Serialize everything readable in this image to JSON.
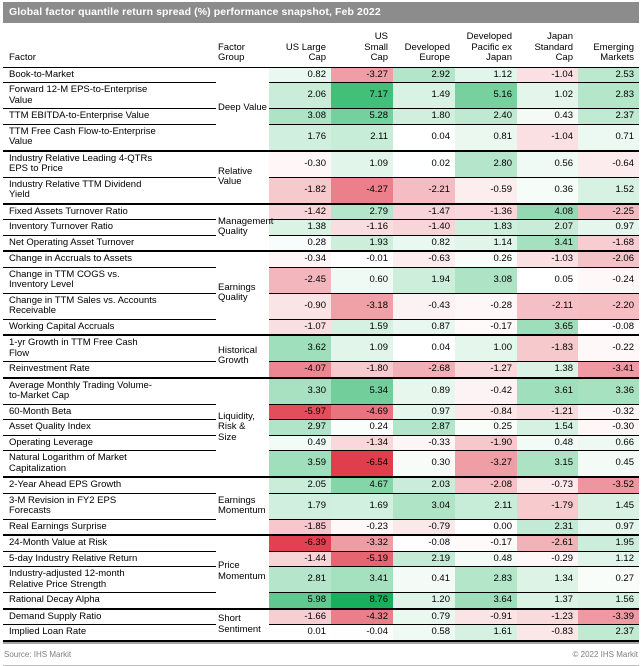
{
  "chart_data": {
    "type": "heatmap",
    "title": "Global factor quantile return spread (%) performance snapshot, Feb 2022",
    "row_header": "Factor",
    "group_header": "Factor Group",
    "columns": [
      "US Large\nCap",
      "US\nSmall\nCap",
      "Developed\nEurope",
      "Developed\nPacific ex\nJapan",
      "Japan\nStandard\nCap",
      "Emerging\nMarkets"
    ],
    "groups": [
      {
        "name": "Deep Value",
        "factors": [
          {
            "name": "Book-to-Market",
            "values": [
              0.82,
              -3.27,
              2.92,
              1.12,
              -1.04,
              2.53
            ]
          },
          {
            "name": "Forward 12-M EPS-to-Enterprise\nValue",
            "values": [
              2.06,
              7.17,
              1.49,
              5.16,
              1.02,
              2.83
            ]
          },
          {
            "name": "TTM EBITDA-to-Enterprise Value",
            "values": [
              3.08,
              5.28,
              1.8,
              2.4,
              0.43,
              2.37
            ]
          },
          {
            "name": "TTM Free Cash Flow-to-Enterprise\nValue",
            "values": [
              1.76,
              2.11,
              0.04,
              0.81,
              -1.04,
              0.71
            ]
          }
        ]
      },
      {
        "name": "Relative Value",
        "factors": [
          {
            "name": "Industry Relative Leading 4-QTRs\nEPS to Price",
            "values": [
              -0.3,
              1.09,
              0.02,
              2.8,
              0.56,
              -0.64
            ]
          },
          {
            "name": "Industry Relative TTM Dividend\nYield",
            "values": [
              -1.82,
              -4.27,
              -2.21,
              -0.59,
              0.36,
              1.52
            ]
          }
        ]
      },
      {
        "name": "Management\nQuality",
        "factors": [
          {
            "name": "Fixed Assets Turnover Ratio",
            "values": [
              -1.42,
              2.79,
              -1.47,
              -1.36,
              4.08,
              -2.25
            ]
          },
          {
            "name": "Inventory Turnover Ratio",
            "values": [
              1.38,
              -1.16,
              -1.4,
              1.83,
              2.07,
              0.97
            ]
          },
          {
            "name": "Net Operating Asset Turnover",
            "values": [
              0.28,
              1.93,
              0.82,
              1.14,
              3.41,
              -1.68
            ]
          }
        ]
      },
      {
        "name": "Earnings Quality",
        "factors": [
          {
            "name": "Change in Accruals to Assets",
            "values": [
              -0.34,
              -0.01,
              -0.63,
              0.26,
              -1.03,
              -2.06
            ]
          },
          {
            "name": "Change in TTM COGS vs.\nInventory Level",
            "values": [
              -2.45,
              0.6,
              1.94,
              3.08,
              0.05,
              -0.24
            ]
          },
          {
            "name": "Change in TTM Sales vs. Accounts\nReceivable",
            "values": [
              -0.9,
              -3.18,
              -0.43,
              -0.28,
              -2.11,
              -2.2
            ]
          },
          {
            "name": "Working Capital Accruals",
            "values": [
              -1.07,
              1.59,
              0.87,
              -0.17,
              3.65,
              -0.08
            ]
          }
        ]
      },
      {
        "name": "Historical Growth",
        "factors": [
          {
            "name": "1-yr Growth in TTM Free Cash\nFlow",
            "values": [
              3.62,
              1.09,
              0.04,
              1.0,
              -1.83,
              -0.22
            ]
          },
          {
            "name": "Reinvestment Rate",
            "values": [
              -4.07,
              -1.8,
              -2.68,
              -1.27,
              1.38,
              -3.41
            ]
          }
        ]
      },
      {
        "name": "Liquidity, Risk &\nSize",
        "factors": [
          {
            "name": "Average Monthly Trading Volume-\nto-Market Cap",
            "values": [
              3.3,
              5.34,
              0.89,
              -0.42,
              3.61,
              3.36
            ]
          },
          {
            "name": "60-Month Beta",
            "values": [
              -5.97,
              -4.69,
              0.97,
              -0.84,
              -1.21,
              -0.32
            ]
          },
          {
            "name": "Asset Quality Index",
            "values": [
              2.97,
              0.24,
              2.87,
              0.25,
              1.54,
              -0.3
            ]
          },
          {
            "name": "Operating Leverage",
            "values": [
              0.49,
              -1.34,
              -0.33,
              -1.9,
              0.48,
              0.66
            ]
          },
          {
            "name": "Natural Logarithm of Market\nCapitalization",
            "values": [
              3.59,
              -6.54,
              0.3,
              -3.27,
              3.15,
              0.45
            ]
          }
        ]
      },
      {
        "name": "Earnings\nMomentum",
        "factors": [
          {
            "name": "2-Year Ahead EPS Growth",
            "values": [
              2.05,
              4.67,
              2.03,
              -2.08,
              -0.73,
              -3.52
            ]
          },
          {
            "name": "3-M Revision in FY2 EPS\nForecasts",
            "values": [
              1.79,
              1.69,
              3.04,
              2.11,
              -1.79,
              1.45
            ]
          },
          {
            "name": "Real Earnings Surprise",
            "values": [
              -1.85,
              -0.23,
              -0.79,
              0.0,
              2.31,
              0.97
            ]
          }
        ]
      },
      {
        "name": "Price Momentum",
        "factors": [
          {
            "name": "24-Month Value at Risk",
            "values": [
              -6.39,
              -3.32,
              -0.08,
              -0.17,
              -2.61,
              1.95
            ]
          },
          {
            "name": "5-day Industry Relative Return",
            "values": [
              -1.44,
              -5.19,
              2.19,
              0.48,
              -0.29,
              1.12
            ]
          },
          {
            "name": "Industry-adjusted 12-month\nRelative Price Strength",
            "values": [
              2.81,
              3.41,
              0.41,
              2.83,
              1.34,
              0.27
            ]
          },
          {
            "name": "Rational Decay Alpha",
            "values": [
              5.98,
              8.76,
              1.2,
              3.64,
              1.37,
              1.56
            ]
          }
        ]
      },
      {
        "name": "Short Sentiment",
        "factors": [
          {
            "name": "Demand Supply Ratio",
            "values": [
              -1.66,
              -4.32,
              0.79,
              -0.91,
              -1.23,
              -3.39
            ]
          },
          {
            "name": "Implied Loan Rate",
            "values": [
              0.01,
              -0.04,
              0.58,
              1.61,
              -0.83,
              2.37
            ]
          }
        ]
      }
    ],
    "color_scale": {
      "zero_color": "#ffffff",
      "positive_max_color": "#17b05b",
      "negative_max_color": "#e03b4b",
      "positive_domain": [
        0,
        8.8
      ],
      "negative_domain": [
        0,
        -6.6
      ]
    },
    "value_format": "two-decimal"
  },
  "footer": {
    "source": "Source: IHS Markit",
    "copyright": "© 2022 IHS Markit"
  },
  "colors": {
    "title_bar": "#8c8c8c",
    "title_text": "#ffffff",
    "footer_text": "#808080"
  }
}
